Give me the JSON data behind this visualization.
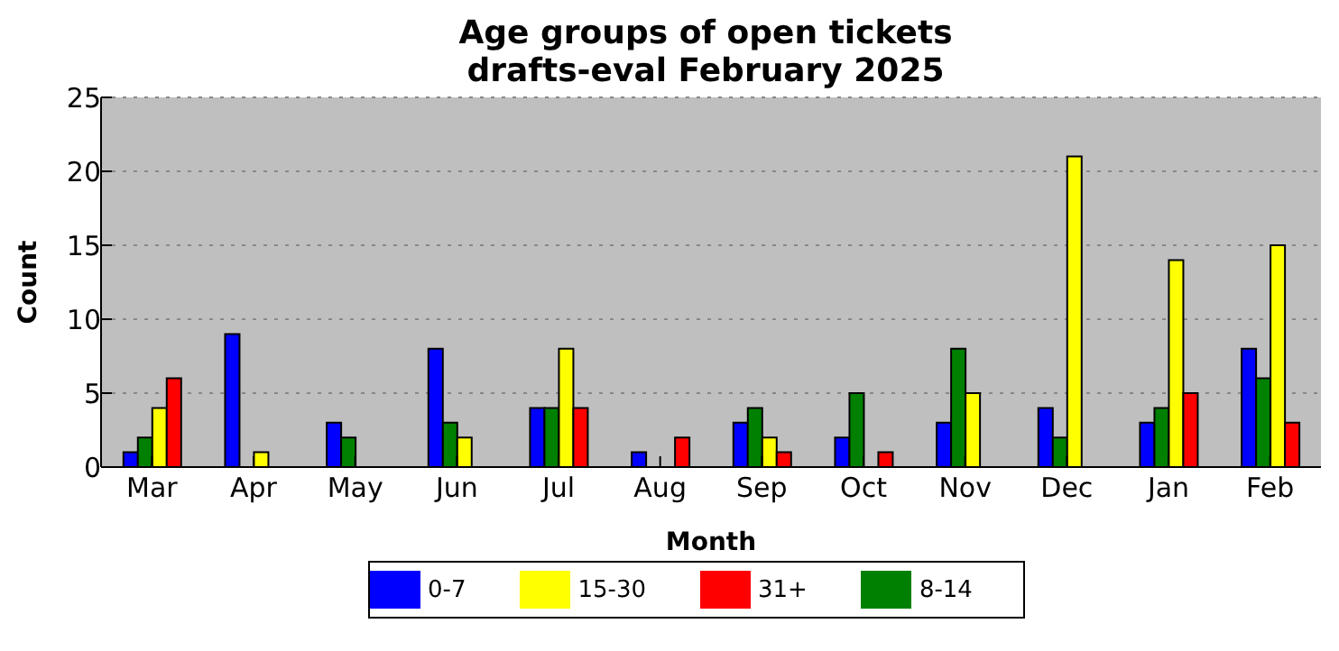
{
  "chart_data": {
    "type": "bar",
    "title": "Age groups of open tickets\ndrafts-eval February 2025",
    "xlabel": "Month",
    "ylabel": "Count",
    "categories": [
      "Mar",
      "Apr",
      "May",
      "Jun",
      "Jul",
      "Aug",
      "Sep",
      "Oct",
      "Nov",
      "Dec",
      "Jan",
      "Feb"
    ],
    "series": [
      {
        "name": "0-7",
        "color": "#0000ff",
        "values": [
          1,
          9,
          3,
          8,
          4,
          1,
          3,
          2,
          3,
          4,
          3,
          8
        ]
      },
      {
        "name": "8-14",
        "color": "#008000",
        "values": [
          2,
          0,
          2,
          3,
          4,
          0,
          4,
          5,
          8,
          2,
          4,
          6
        ]
      },
      {
        "name": "15-30",
        "color": "#ffff00",
        "values": [
          4,
          1,
          0,
          2,
          8,
          0,
          2,
          0,
          5,
          21,
          14,
          15
        ]
      },
      {
        "name": "31+",
        "color": "#ff0000",
        "values": [
          6,
          0,
          0,
          0,
          4,
          2,
          1,
          1,
          0,
          0,
          5,
          3
        ]
      }
    ],
    "ylim": [
      0,
      25
    ],
    "yticks": [
      0,
      5,
      10,
      15,
      20,
      25
    ],
    "grid": "y",
    "legend": "bottom"
  }
}
